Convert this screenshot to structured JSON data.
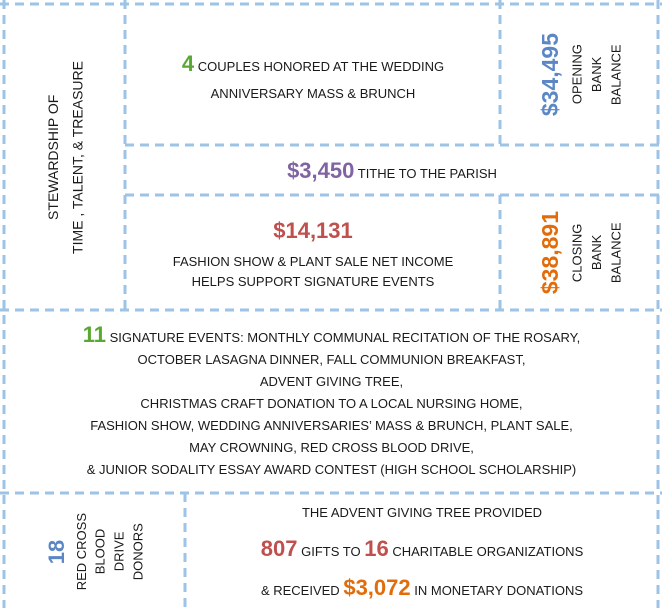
{
  "stewardship": {
    "line1": "STEWARDSHIP OF",
    "line2": "TIME , TALENT, & TREASURE"
  },
  "couples": {
    "number": "4",
    "line1": "COUPLES HONORED AT THE WEDDING",
    "line2": "ANNIVERSARY MASS & BRUNCH"
  },
  "opening": {
    "number": "$34,495",
    "lines": [
      "OPENING",
      "BANK",
      "BALANCE"
    ]
  },
  "tithe": {
    "number": "$3,450",
    "text": "TITHE TO THE PARISH"
  },
  "fashion": {
    "number": "$14,131",
    "line1": "FASHION SHOW & PLANT SALE NET INCOME",
    "line2": "HELPS SUPPORT SIGNATURE EVENTS"
  },
  "closing": {
    "number": "$38,891",
    "lines": [
      "CLOSING",
      "BANK",
      "BALANCE"
    ]
  },
  "events": {
    "number": "11",
    "lines": [
      "SIGNATURE EVENTS: MONTHLY COMMUNAL RECITATION OF THE ROSARY,",
      "OCTOBER LASAGNA DINNER, FALL COMMUNION BREAKFAST,",
      "ADVENT GIVING TREE,",
      "CHRISTMAS CRAFT DONATION TO A LOCAL NURSING HOME,",
      "FASHION SHOW, WEDDING ANNIVERSARIES’ MASS & BRUNCH, PLANT SALE,",
      "MAY CROWNING, RED CROSS BLOOD DRIVE,",
      "& JUNIOR SODALITY ESSAY AWARD CONTEST (HIGH SCHOOL SCHOLARSHIP)"
    ]
  },
  "donors": {
    "number": "18",
    "lines": [
      "RED CROSS",
      "BLOOD",
      "DRIVE",
      "DONORS"
    ]
  },
  "advent": {
    "line1": "THE ADVENT GIVING TREE PROVIDED",
    "gifts": "807",
    "gifts_text": "GIFTS TO",
    "orgs": "16",
    "orgs_text": "CHARITABLE ORGANIZATIONS",
    "received_text": "& RECEIVED",
    "donations": "$3,072",
    "donations_text": "IN MONETARY DONATIONS"
  }
}
